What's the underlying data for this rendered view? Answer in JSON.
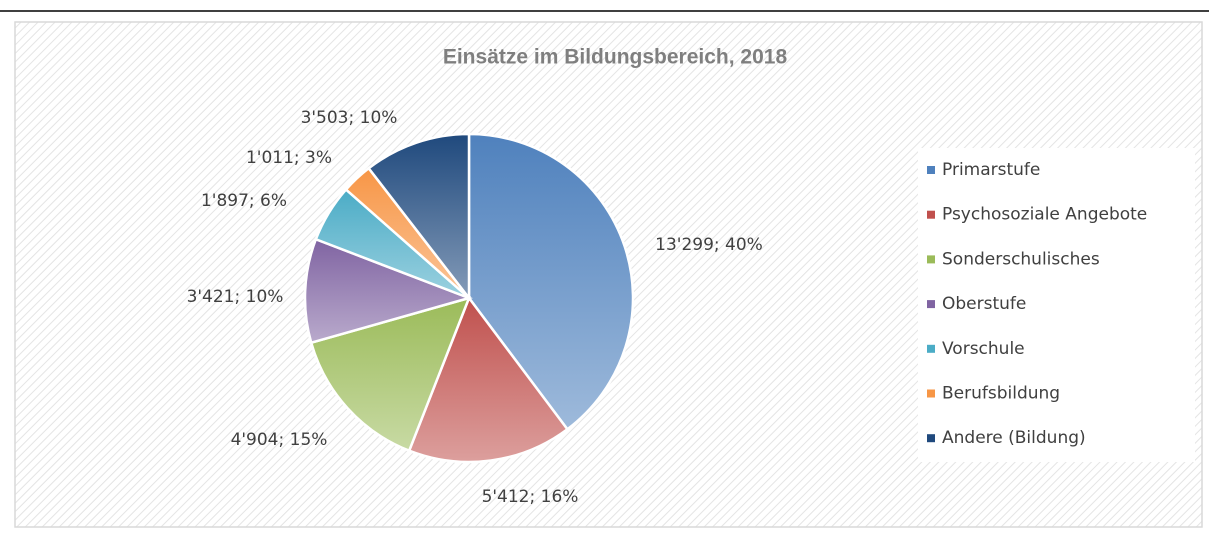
{
  "chart_data": {
    "type": "pie",
    "title": "Einsätze im Bildungsbereich, 2018",
    "categories": [
      "Primarstufe",
      "Psychosoziale Angebote",
      "Sonderschulisches",
      "Oberstufe",
      "Vorschule",
      "Berufsbildung",
      "Andere (Bildung)"
    ],
    "values": [
      13299,
      5412,
      4904,
      3421,
      1897,
      1011,
      3503
    ],
    "value_labels": [
      "13'299; 40%",
      "5'412; 16%",
      "4'904; 15%",
      "3'421; 10%",
      "1'897; 6%",
      "1'011; 3%",
      "3'503; 10%"
    ],
    "colors": [
      "#4f81bd",
      "#c0504d",
      "#9bbb59",
      "#8064a2",
      "#4bacc6",
      "#f79646",
      "#1f497d"
    ],
    "legend": "right"
  }
}
